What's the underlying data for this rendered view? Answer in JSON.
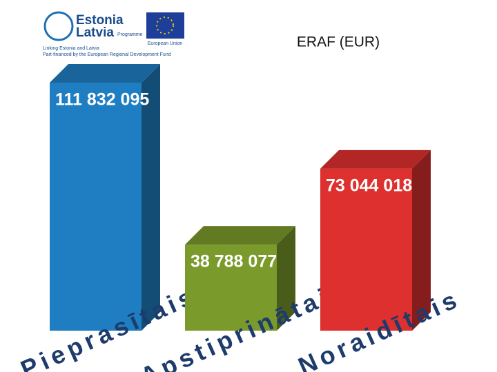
{
  "logo": {
    "programme": "Estonia",
    "programme2": "Latvia",
    "programme3": "Programme",
    "eu": "European Union",
    "tagline1": "Linking Estonia and Latvia",
    "tagline2": "Part-financed by the European Regional Development Fund"
  },
  "chart_data": {
    "type": "bar",
    "title": "ERAF (EUR)",
    "categories": [
      "Pieprasītais",
      "Apstiprinātais",
      "Noraidītais"
    ],
    "values": [
      111832095,
      38788077,
      73044018
    ],
    "value_labels": [
      "111 832 095",
      "38 788 077",
      "73 044 018"
    ],
    "colors": [
      "#1f7ec2",
      "#7b9a2c",
      "#de302e"
    ]
  }
}
